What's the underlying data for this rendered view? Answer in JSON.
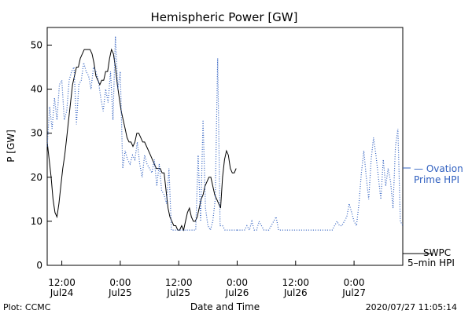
{
  "chart_data": {
    "type": "line",
    "title": "Hemispheric Power [GW]",
    "ylabel": "P [GW]",
    "xlabel": "Date and Time",
    "x_units": "hours since the 00:00 Jul24 tick",
    "xlim": [
      9,
      82
    ],
    "ylim": [
      0,
      54
    ],
    "yticks": [
      0,
      10,
      20,
      30,
      40,
      50
    ],
    "xticks": [
      {
        "x": 12,
        "line1": "12:00",
        "line2": "Jul24"
      },
      {
        "x": 24,
        "line1": "0:00",
        "line2": "Jul25"
      },
      {
        "x": 36,
        "line1": "12:00",
        "line2": "Jul25"
      },
      {
        "x": 48,
        "line1": "0:00",
        "line2": "Jul26"
      },
      {
        "x": 60,
        "line1": "12:00",
        "line2": "Jul26"
      },
      {
        "x": 72,
        "line1": "0:00",
        "line2": "Jul27"
      }
    ],
    "series": [
      {
        "name": "SWPC 5-min HPI",
        "style": "solid",
        "color": "#000000",
        "legend": [
          "SWPC",
          "5–min HPI"
        ],
        "segments": [
          {
            "x": [
              9.0,
              9.4,
              9.8,
              10.2,
              10.6,
              11.0,
              11.4,
              11.8,
              12.2,
              12.6,
              13.0,
              13.4,
              13.8,
              14.2,
              14.6,
              15.0,
              15.4,
              15.8,
              16.2,
              16.6,
              17.0,
              17.4,
              17.8,
              18.2,
              18.6,
              19.0,
              19.4,
              19.8,
              20.2,
              20.6,
              21.0,
              21.4,
              21.8,
              22.2,
              22.6,
              23.0,
              23.4,
              23.8,
              24.2,
              24.6,
              25.0,
              25.4,
              25.8,
              26.2,
              26.6,
              27.0,
              27.4,
              27.8,
              28.2,
              28.6,
              29.0,
              29.4,
              29.8,
              30.2,
              30.6,
              31.0,
              31.4,
              31.8,
              32.2,
              32.6,
              33.0,
              33.4,
              33.8,
              34.2,
              34.6,
              35.0,
              35.4,
              35.8,
              36.2,
              36.6,
              37.0,
              37.4,
              37.8,
              38.2,
              38.6,
              39.0,
              39.4,
              39.8,
              40.2,
              40.6,
              41.0,
              41.4,
              41.8,
              42.2,
              42.6,
              43.0,
              43.4,
              43.8,
              44.2,
              44.6,
              45.0,
              45.4,
              45.8,
              46.2,
              46.6,
              47.0,
              47.4,
              47.8
            ],
            "y": [
              28,
              24,
              20,
              15,
              12,
              11,
              14,
              18,
              22,
              25,
              29,
              33,
              37,
              41,
              43,
              45,
              45,
              47,
              48,
              49,
              49,
              49,
              49,
              48,
              46,
              43,
              42,
              41,
              42,
              42,
              44,
              44,
              47,
              49,
              48,
              45,
              41,
              38,
              35,
              33,
              31,
              29,
              28,
              28,
              27,
              28,
              30,
              30,
              29,
              28,
              28,
              27,
              26,
              25,
              24,
              23,
              22,
              22,
              22,
              21,
              21,
              17,
              13,
              11,
              10,
              9,
              9,
              8,
              8,
              9,
              8,
              10,
              12,
              13,
              11,
              10,
              10,
              11,
              13,
              15,
              16,
              18,
              19,
              20,
              20,
              18,
              16,
              15,
              14,
              13,
              20,
              24,
              26,
              25,
              22,
              21,
              21,
              22
            ]
          }
        ]
      },
      {
        "name": "Ovation Prime HPI",
        "style": "dotted",
        "color": "#3060c0",
        "legend": [
          "— Ovation",
          "Prime HPI"
        ],
        "segments": [
          {
            "x": [
              9.0,
              9.5,
              10.0,
              10.5,
              11.0,
              11.5,
              12.0,
              12.5,
              13.0,
              13.5,
              14.0,
              14.5,
              15.0,
              15.5,
              16.0,
              16.5,
              17.0,
              17.5,
              18.0,
              18.5,
              19.0,
              19.5,
              20.0,
              20.5,
              21.0,
              21.5,
              22.0,
              22.5,
              23.0,
              23.5,
              24.0,
              24.5,
              25.0,
              25.5,
              26.0,
              26.5,
              27.0,
              27.5,
              28.0,
              28.5,
              29.0,
              29.5,
              30.0,
              30.5,
              31.0,
              31.5,
              32.0,
              32.5,
              33.0,
              33.5,
              34.0,
              34.5,
              35.0,
              35.5,
              36.0,
              36.5,
              37.0,
              37.5,
              38.0,
              38.5,
              39.0,
              39.5,
              40.0,
              40.5,
              41.0,
              41.5,
              42.0,
              42.5,
              43.0,
              43.5,
              44.0,
              44.5,
              45.0,
              45.5,
              46.0,
              46.5,
              47.0,
              47.5,
              48.0
            ],
            "y": [
              27,
              36,
              31,
              38,
              33,
              41,
              42,
              33,
              35,
              42,
              44,
              45,
              32,
              41,
              42,
              46,
              44,
              43,
              40,
              45,
              44,
              42,
              38,
              35,
              40,
              37,
              44,
              33,
              52,
              40,
              44,
              22,
              26,
              24,
              23,
              25,
              24,
              28,
              23,
              20,
              25,
              23,
              22,
              21,
              24,
              18,
              23,
              17,
              16,
              14,
              22,
              8,
              8,
              8,
              8,
              8,
              8,
              8,
              8,
              8,
              8,
              8,
              25,
              10,
              33,
              13,
              9,
              8,
              10,
              15,
              47,
              9,
              9,
              8,
              8,
              8,
              8,
              8,
              8
            ]
          },
          {
            "x": [
              48.0,
              48.5,
              49.0,
              49.5,
              50.0,
              50.5,
              51.0,
              51.5,
              52.0,
              52.5,
              53.0,
              53.5,
              54.0,
              54.5,
              55.0,
              55.5,
              56.0,
              56.5,
              57.0,
              57.5,
              58.0,
              58.5,
              59.0,
              59.5,
              60.0,
              60.5,
              61.0,
              61.5,
              62.0,
              62.5,
              63.0,
              63.5,
              64.0,
              64.5,
              65.0,
              65.5,
              66.0,
              66.5,
              67.0,
              67.5,
              68.0,
              68.5,
              69.0,
              69.5,
              70.0,
              70.5,
              71.0,
              71.5,
              72.0,
              72.5,
              73.0,
              73.5,
              74.0,
              74.5,
              75.0,
              75.5,
              76.0,
              76.5,
              77.0,
              77.5,
              78.0,
              78.5,
              79.0,
              79.5,
              80.0,
              80.5,
              81.0,
              81.5,
              82.0
            ],
            "y": [
              8,
              8,
              8,
              8,
              9,
              8,
              10,
              8,
              8,
              10,
              9,
              8,
              8,
              8,
              9,
              10,
              11,
              8,
              8,
              8,
              8,
              8,
              8,
              8,
              8,
              8,
              8,
              8,
              8,
              8,
              8,
              8,
              8,
              8,
              8,
              8,
              8,
              8,
              8,
              8,
              9,
              10,
              9,
              9,
              10,
              11,
              14,
              12,
              10,
              9,
              14,
              21,
              26,
              20,
              15,
              24,
              29,
              25,
              20,
              15,
              24,
              18,
              22,
              19,
              13,
              27,
              31,
              10,
              9
            ]
          }
        ]
      }
    ],
    "footer": {
      "left": "Plot: CCMC",
      "right": "2020/07/27 11:05:14"
    }
  }
}
